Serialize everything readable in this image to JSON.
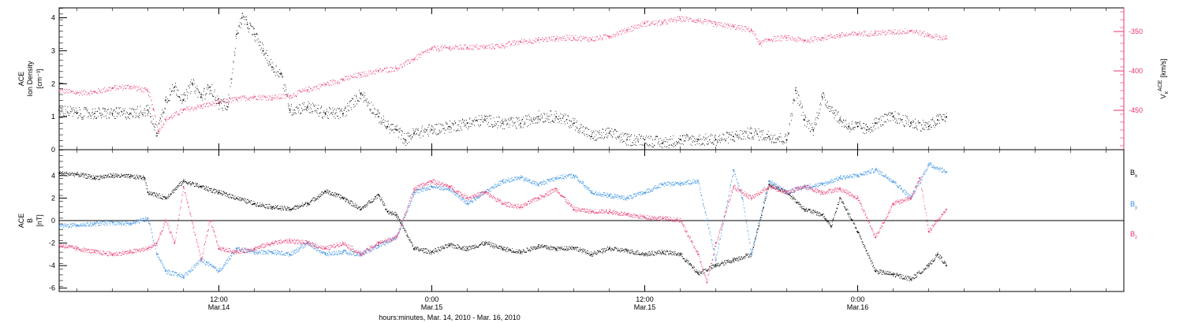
{
  "colors": {
    "black": "#000000",
    "red": "#e8356b",
    "blue": "#2f8de4"
  },
  "figure": {
    "xlabel": "hours:minutes, Mar. 14, 2010 - Mar. 16, 2010",
    "x_ticks": [
      {
        "label": "12:00",
        "sub": "Mar.14",
        "hours": 12
      },
      {
        "label": "0:00",
        "sub": "Mar.15",
        "hours": 24
      },
      {
        "label": "12:00",
        "sub": "Mar.15",
        "hours": 36
      },
      {
        "label": "0:00",
        "sub": "Mar.16",
        "hours": 48
      }
    ],
    "x_range_hours": [
      3,
      63
    ]
  },
  "chart_data": [
    {
      "type": "scatter",
      "ylabel_lines": [
        "ACE",
        "Ion Density"
      ],
      "yunit": "[cm⁻³]",
      "ylim": [
        0,
        4.3
      ],
      "yticks": [
        "0",
        "1",
        "2",
        "3",
        "4"
      ],
      "ytick_values": [
        0,
        1,
        2,
        3,
        4
      ],
      "right_axis": {
        "label_base": "V",
        "label_sub": "x",
        "label_sup": "ACE",
        "unit": "[km/s]",
        "ylim": [
          -500,
          -320
        ],
        "yticks": [
          "-350",
          "-400",
          "-450"
        ],
        "ytick_values": [
          -350,
          -400,
          -450
        ]
      },
      "series": [
        {
          "name": "Ion Density",
          "color_key": "black",
          "axis": "left",
          "x": [
            3,
            4,
            5,
            6,
            7,
            8,
            8.5,
            9,
            9.5,
            10,
            10.5,
            11,
            11.5,
            12,
            12.5,
            13,
            13.3,
            13.6,
            14,
            14.5,
            15,
            15.5,
            16,
            17,
            18,
            19,
            20,
            21,
            21.5,
            22,
            22.5,
            23,
            24,
            25,
            26,
            27,
            28,
            29,
            30,
            31,
            32,
            33,
            34,
            35,
            36,
            37,
            38,
            39,
            40,
            41,
            42,
            43,
            44,
            44.5,
            45,
            45.5,
            46,
            47,
            47.5,
            48,
            48.5,
            49,
            50,
            51,
            52,
            52.5,
            53
          ],
          "y": [
            1.2,
            1.1,
            1.1,
            1.1,
            1.1,
            1.2,
            0.5,
            1.5,
            1.9,
            1.5,
            2.0,
            1.6,
            1.9,
            1.4,
            1.3,
            3.5,
            4.0,
            3.8,
            3.5,
            3.0,
            2.5,
            2.3,
            1.2,
            1.3,
            1.1,
            1.1,
            1.7,
            1.0,
            0.7,
            0.6,
            0.3,
            0.5,
            0.6,
            0.7,
            0.8,
            0.9,
            0.8,
            0.8,
            1.0,
            1.0,
            0.8,
            0.4,
            0.5,
            0.3,
            0.3,
            0.2,
            0.3,
            0.3,
            0.3,
            0.4,
            0.5,
            0.4,
            0.3,
            1.8,
            0.9,
            0.6,
            1.6,
            0.9,
            0.7,
            0.7,
            0.6,
            0.8,
            1.0,
            0.8,
            0.7,
            0.9,
            1.0
          ]
        },
        {
          "name": "Vx",
          "color_key": "red",
          "axis": "right",
          "x": [
            3,
            4,
            5,
            6,
            7,
            8,
            8.3,
            8.6,
            9,
            10,
            11,
            12,
            13,
            14,
            15,
            16,
            17,
            18,
            19,
            20,
            21,
            22,
            23,
            24,
            25,
            26,
            27,
            28,
            29,
            30,
            31,
            32,
            33,
            34,
            35,
            36,
            37,
            38,
            39,
            40,
            41,
            42,
            42.5,
            43,
            44,
            45,
            46,
            47,
            48,
            49,
            50,
            51,
            52,
            53
          ],
          "y": [
            -425,
            -428,
            -427,
            -422,
            -420,
            -426,
            -448,
            -476,
            -462,
            -450,
            -445,
            -440,
            -436,
            -433,
            -434,
            -432,
            -424,
            -417,
            -411,
            -405,
            -400,
            -397,
            -385,
            -372,
            -371,
            -370,
            -370,
            -368,
            -363,
            -361,
            -359,
            -358,
            -360,
            -356,
            -348,
            -340,
            -339,
            -334,
            -336,
            -341,
            -344,
            -348,
            -366,
            -360,
            -358,
            -362,
            -358,
            -355,
            -353,
            -352,
            -351,
            -349,
            -355,
            -359
          ]
        }
      ]
    },
    {
      "type": "scatter",
      "ylabel_lines": [
        "ACE",
        "B"
      ],
      "yunit": "[nT]",
      "ylim": [
        -6.3,
        6.3
      ],
      "yticks": [
        "-6",
        "-4",
        "-2",
        "0",
        "2",
        "4"
      ],
      "ytick_values": [
        -6,
        -4,
        -2,
        0,
        2,
        4
      ],
      "legend": [
        {
          "base": "B",
          "sub": "x",
          "color_key": "black"
        },
        {
          "base": "B",
          "sub": "y",
          "color_key": "blue"
        },
        {
          "base": "B",
          "sub": "z",
          "color_key": "red"
        }
      ],
      "series": [
        {
          "name": "Bx",
          "color_key": "black",
          "x": [
            3,
            4,
            5,
            6,
            7,
            7.8,
            8,
            9,
            10,
            11,
            12,
            13,
            14,
            15,
            16,
            17,
            18,
            19,
            20,
            21,
            21.5,
            22,
            23,
            24,
            25,
            26,
            27,
            28,
            29,
            30,
            31,
            32,
            33,
            34,
            35,
            36,
            37,
            38,
            39,
            40,
            41,
            42,
            43,
            44,
            45,
            46,
            46.5,
            47,
            48,
            49,
            50,
            51,
            52,
            52.5,
            53
          ],
          "y": [
            4.2,
            4.1,
            3.8,
            4.0,
            3.9,
            3.8,
            2.5,
            2.0,
            3.5,
            3.0,
            2.5,
            2.0,
            1.5,
            1.2,
            1.0,
            1.5,
            2.6,
            2.0,
            1.0,
            2.3,
            0.8,
            0.5,
            -2.5,
            -2.8,
            -2.2,
            -2.5,
            -2.0,
            -2.5,
            -2.8,
            -2.3,
            -2.5,
            -2.4,
            -3.0,
            -2.5,
            -2.7,
            -3.0,
            -2.8,
            -3.0,
            -4.7,
            -4.0,
            -3.5,
            -3.0,
            3.2,
            2.5,
            1.0,
            0.5,
            -0.5,
            2.0,
            -1.0,
            -4.5,
            -4.8,
            -5.2,
            -4.0,
            -3.0,
            -4.0
          ]
        },
        {
          "name": "By",
          "color_key": "blue",
          "x": [
            3,
            4,
            5,
            6,
            7,
            8,
            8.5,
            9,
            10,
            11,
            12,
            13,
            14,
            15,
            16,
            17,
            18,
            19,
            20,
            21,
            22,
            23,
            24,
            25,
            26,
            27,
            28,
            29,
            30,
            31,
            32,
            33,
            34,
            35,
            36,
            37,
            38,
            39,
            39.5,
            40,
            41,
            41.5,
            42,
            43,
            44,
            45,
            46,
            47,
            48,
            49,
            50,
            51,
            52,
            53
          ],
          "y": [
            -0.5,
            -0.4,
            -0.3,
            -0.2,
            -0.3,
            0.2,
            -3.0,
            -4.5,
            -5.0,
            -3.5,
            -4.5,
            -2.5,
            -2.8,
            -2.8,
            -3.0,
            -2.0,
            -3.0,
            -2.8,
            -3.0,
            -2.2,
            -1.5,
            2.5,
            3.0,
            2.8,
            1.5,
            2.5,
            3.5,
            3.8,
            3.2,
            3.8,
            4.0,
            2.5,
            2.2,
            2.0,
            2.5,
            3.2,
            3.3,
            3.5,
            0.0,
            -3.5,
            4.5,
            2.0,
            -3.0,
            3.5,
            2.5,
            3.0,
            3.2,
            3.8,
            4.0,
            4.5,
            3.5,
            2.0,
            5.0,
            4.3
          ]
        },
        {
          "name": "Bz",
          "color_key": "red",
          "x": [
            3,
            4,
            5,
            6,
            7,
            8,
            8.5,
            9,
            9.5,
            10,
            11,
            11.5,
            12,
            13,
            14,
            15,
            16,
            17,
            18,
            19,
            20,
            21,
            22,
            23,
            24,
            25,
            26,
            27,
            28,
            29,
            30,
            31,
            32,
            33,
            34,
            35,
            36,
            37,
            38,
            39,
            39.5,
            40,
            41,
            42,
            43,
            44,
            45,
            46,
            47,
            48,
            49,
            50,
            51,
            51.5,
            52,
            53
          ],
          "y": [
            -2.2,
            -2.5,
            -2.8,
            -3.0,
            -2.8,
            -2.5,
            -2.0,
            0.0,
            -2.0,
            3.0,
            -3.5,
            0.0,
            -2.5,
            -2.8,
            -2.5,
            -2.0,
            -1.8,
            -2.0,
            -2.5,
            -2.0,
            -3.0,
            -2.0,
            -1.5,
            2.8,
            3.5,
            3.0,
            2.0,
            2.5,
            1.5,
            1.2,
            2.0,
            2.8,
            1.0,
            0.8,
            0.8,
            0.5,
            0.3,
            0.2,
            0.0,
            -3.0,
            -5.5,
            -2.0,
            3.0,
            2.0,
            3.0,
            2.5,
            3.0,
            2.5,
            2.8,
            2.0,
            -1.5,
            1.5,
            2.0,
            3.8,
            -1.0,
            1.0
          ]
        }
      ]
    }
  ]
}
